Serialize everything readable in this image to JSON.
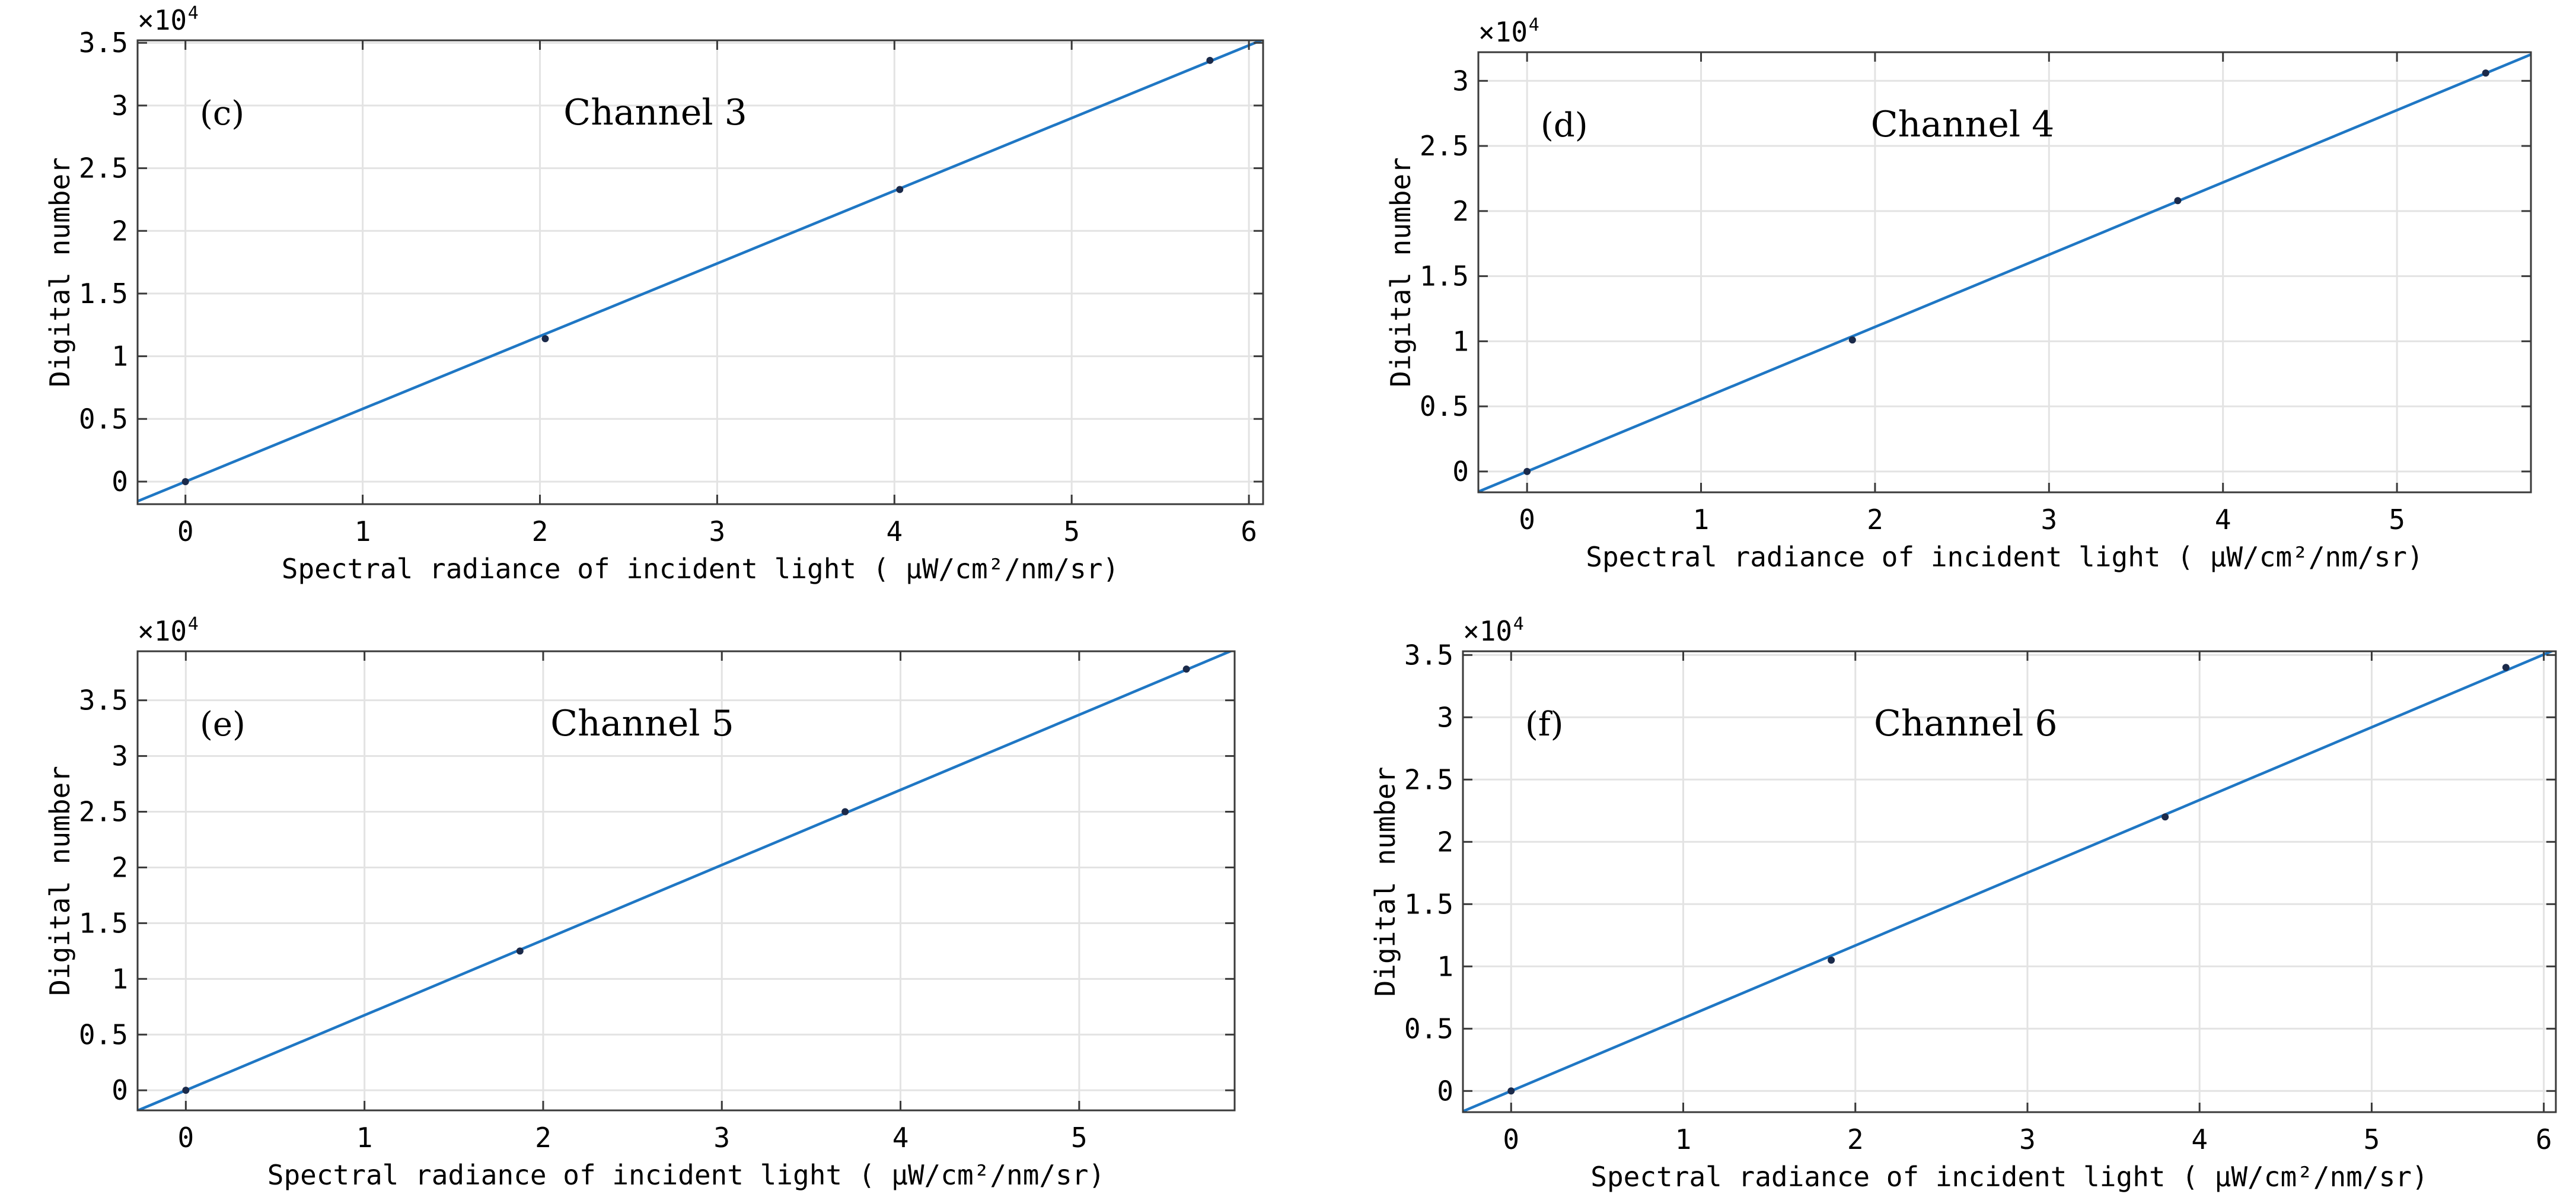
{
  "chart_data": [
    {
      "type": "scatter",
      "panel_label": "(c)",
      "title": "Channel 3",
      "xlabel": "Spectral radiance of incident light ( μW/cm²/nm/sr)",
      "ylabel": "Digital number",
      "y_multiplier": "×10",
      "y_multiplier_exp": "4",
      "xlim": [
        -0.27,
        6.08
      ],
      "ylim": [
        -0.18,
        3.52
      ],
      "xticks": [
        0,
        1,
        2,
        3,
        4,
        5,
        6
      ],
      "yticks": [
        0,
        0.5,
        1,
        1.5,
        2,
        2.5,
        3,
        3.5
      ],
      "grid": true,
      "color": "#1f77c4",
      "x": [
        0,
        2.03,
        4.03,
        5.78
      ],
      "y": [
        0,
        1.14,
        2.33,
        3.36
      ],
      "fit": {
        "slope": 0.58,
        "intercept": 0
      }
    },
    {
      "type": "scatter",
      "panel_label": "(d)",
      "title": "Channel 4",
      "xlabel": "Spectral radiance of incident light ( μW/cm²/nm/sr)",
      "ylabel": "Digital number",
      "y_multiplier": "×10",
      "y_multiplier_exp": "4",
      "xlim": [
        -0.28,
        5.77
      ],
      "ylim": [
        -0.16,
        3.22
      ],
      "xticks": [
        0,
        1,
        2,
        3,
        4,
        5
      ],
      "yticks": [
        0,
        0.5,
        1,
        1.5,
        2,
        2.5,
        3
      ],
      "grid": true,
      "color": "#1f77c4",
      "x": [
        0,
        1.87,
        3.74,
        5.51
      ],
      "y": [
        0,
        1.01,
        2.08,
        3.06
      ],
      "fit": {
        "slope": 0.555,
        "intercept": 0
      }
    },
    {
      "type": "scatter",
      "panel_label": "(e)",
      "title": "Channel 5",
      "xlabel": "Spectral radiance of incident light ( μW/cm²/nm/sr)",
      "ylabel": "Digital number",
      "y_multiplier": "×10",
      "y_multiplier_exp": "4",
      "xlim": [
        -0.27,
        5.87
      ],
      "ylim": [
        -0.18,
        3.94
      ],
      "xticks": [
        0,
        1,
        2,
        3,
        4,
        5
      ],
      "yticks": [
        0,
        0.5,
        1,
        1.5,
        2,
        2.5,
        3,
        3.5
      ],
      "grid": true,
      "color": "#1f77c4",
      "x": [
        0,
        1.87,
        3.69,
        5.6
      ],
      "y": [
        0,
        1.25,
        2.5,
        3.78
      ],
      "fit": {
        "slope": 0.674,
        "intercept": 0
      }
    },
    {
      "type": "scatter",
      "panel_label": "(f)",
      "title": "Channel 6",
      "xlabel": "Spectral radiance of incident light ( μW/cm²/nm/sr)",
      "ylabel": "Digital number",
      "y_multiplier": "×10",
      "y_multiplier_exp": "4",
      "xlim": [
        -0.28,
        6.07
      ],
      "ylim": [
        -0.17,
        3.53
      ],
      "xticks": [
        0,
        1,
        2,
        3,
        4,
        5,
        6
      ],
      "yticks": [
        0,
        0.5,
        1,
        1.5,
        2,
        2.5,
        3,
        3.5
      ],
      "grid": true,
      "color": "#1f77c4",
      "x": [
        0,
        1.86,
        3.8,
        5.78
      ],
      "y": [
        0,
        1.05,
        2.2,
        3.4
      ],
      "fit": {
        "slope": 0.584,
        "intercept": 0
      }
    }
  ]
}
